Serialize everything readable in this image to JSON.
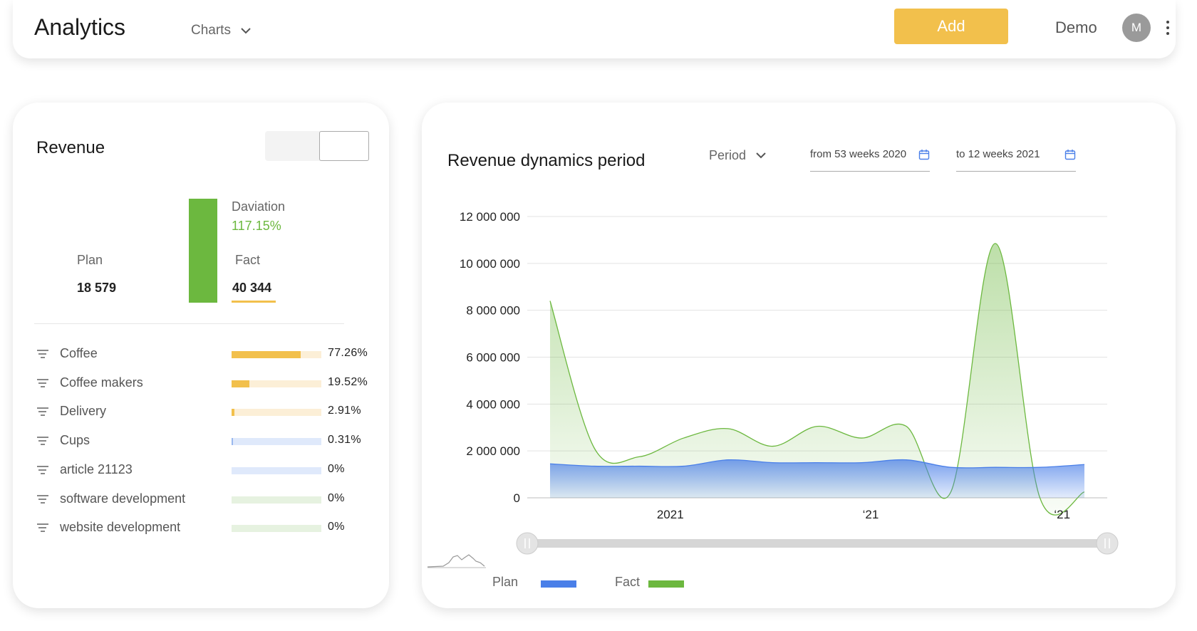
{
  "header": {
    "title": "Analytics",
    "menu_label": "Charts",
    "add_label": "Add",
    "user_name": "Demo",
    "avatar_initial": "M"
  },
  "revenue_card": {
    "title": "Revenue",
    "deviation_label": "Daviation",
    "deviation_value": "117.15%",
    "plan_label": "Plan",
    "plan_value": "18 579",
    "fact_label": "Fact",
    "fact_value": "40 344",
    "categories": [
      {
        "name": "Coffee",
        "pct": "77.26%",
        "fill": 0.7726,
        "track_color": "#fcefd7",
        "fill_color": "#f2c04c"
      },
      {
        "name": "Coffee makers",
        "pct": "19.52%",
        "fill": 0.1952,
        "track_color": "#fcefd7",
        "fill_color": "#f2c04c"
      },
      {
        "name": "Delivery",
        "pct": "2.91%",
        "fill": 0.0291,
        "track_color": "#fcefd7",
        "fill_color": "#f2c04c"
      },
      {
        "name": "Cups",
        "pct": "0.31%",
        "fill": 0.0031,
        "track_color": "#dfe9fb",
        "fill_color": "#9ab8ee"
      },
      {
        "name": "article 21123",
        "pct": "0%",
        "fill": 0,
        "track_color": "#dfe9fb",
        "fill_color": "#9ab8ee"
      },
      {
        "name": "software development",
        "pct": "0%",
        "fill": 0,
        "track_color": "#e6f2e0",
        "fill_color": "#6cb83f"
      },
      {
        "name": "website development",
        "pct": "0%",
        "fill": 0,
        "track_color": "#e6f2e0",
        "fill_color": "#6cb83f"
      }
    ]
  },
  "dynamics_card": {
    "title": "Revenue dynamics period",
    "period_label": "Period",
    "date_from": "from 53 weeks 2020",
    "date_to": "to 12 weeks 2021"
  },
  "chart_data": {
    "type": "area",
    "ylim": [
      0,
      12000000
    ],
    "y_ticks": [
      0,
      2000000,
      4000000,
      6000000,
      8000000,
      10000000,
      12000000
    ],
    "y_tick_labels": [
      "0",
      "2 000 000",
      "4 000 000",
      "6 000 000",
      "8 000 000",
      "10 000 000",
      "12 000 000"
    ],
    "x_tick_labels": [
      "2021",
      "‘21",
      "‘21"
    ],
    "x_tick_positions": [
      2.7,
      7.2,
      11.5
    ],
    "x": [
      0,
      1,
      2,
      3,
      4,
      5,
      6,
      7,
      8,
      9,
      10,
      11,
      12
    ],
    "series": [
      {
        "name": "Plan",
        "color": "#4a7fe8",
        "values": [
          1450000,
          1350000,
          1350000,
          1350000,
          1620000,
          1500000,
          1500000,
          1500000,
          1620000,
          1300000,
          1300000,
          1300000,
          1420000
        ]
      },
      {
        "name": "Fact",
        "color": "#6cb83f",
        "values": [
          8400000,
          2100000,
          1750000,
          2550000,
          2950000,
          2200000,
          3050000,
          2550000,
          3050000,
          250000,
          10850000,
          0,
          250000
        ]
      }
    ],
    "legend": [
      {
        "name": "Plan",
        "color": "#4a7fe8"
      },
      {
        "name": "Fact",
        "color": "#6cb83f"
      }
    ],
    "grid": true,
    "legend_position": "bottom-left"
  }
}
